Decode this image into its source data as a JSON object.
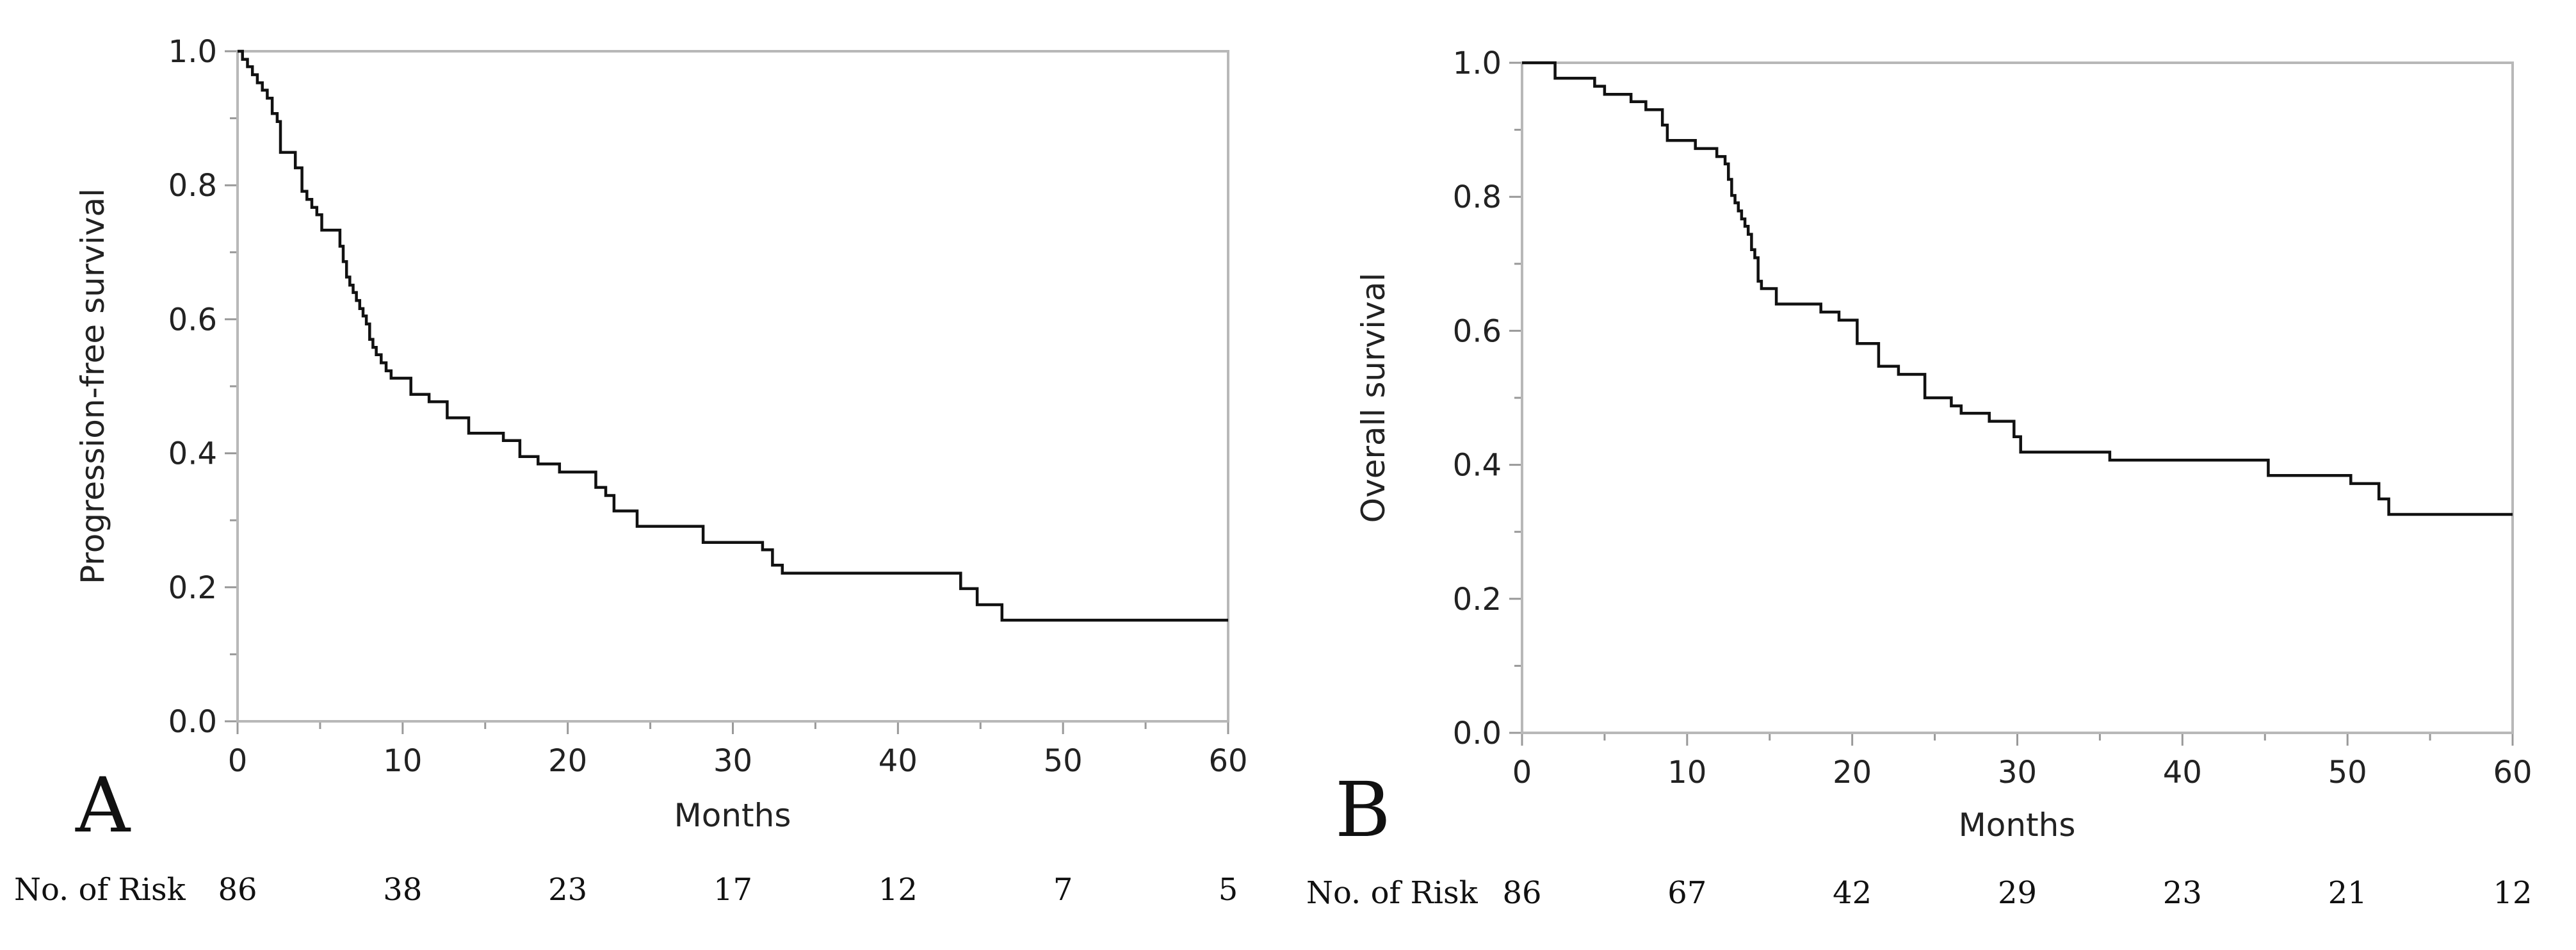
{
  "figure": {
    "risk_table_label": "No. of Risk"
  },
  "chart_data": [
    {
      "type": "line",
      "step": "post",
      "panel_label": "A",
      "title": "",
      "xlabel": "Months",
      "ylabel": "Progression-free survival",
      "xlim": [
        0,
        60
      ],
      "ylim": [
        0,
        1
      ],
      "x_ticks": [
        "0",
        "10",
        "20",
        "30",
        "40",
        "50",
        "60"
      ],
      "y_ticks": [
        "0.0",
        "0.2",
        "0.4",
        "0.6",
        "0.8",
        "1.0"
      ],
      "series": [
        {
          "name": "Progression-free survival",
          "x": [
            0,
            0.3,
            0.6,
            0.9,
            1.2,
            1.5,
            1.8,
            2.1,
            2.4,
            2.6,
            3.5,
            3.9,
            4.2,
            4.5,
            4.8,
            5.1,
            6.2,
            6.4,
            6.6,
            6.8,
            7.0,
            7.2,
            7.4,
            7.6,
            7.8,
            8.0,
            8.2,
            8.4,
            8.7,
            9.0,
            9.3,
            10.5,
            11.6,
            12.7,
            14.0,
            16.1,
            17.1,
            18.2,
            19.5,
            21.7,
            22.3,
            22.8,
            24.2,
            28.2,
            31.8,
            32.4,
            33.0,
            43.8,
            44.8,
            46.3,
            60.0
          ],
          "y": [
            1.0,
            0.988,
            0.977,
            0.965,
            0.953,
            0.942,
            0.93,
            0.907,
            0.895,
            0.849,
            0.826,
            0.791,
            0.779,
            0.767,
            0.756,
            0.733,
            0.709,
            0.686,
            0.663,
            0.651,
            0.64,
            0.628,
            0.616,
            0.605,
            0.593,
            0.57,
            0.558,
            0.547,
            0.535,
            0.523,
            0.512,
            0.488,
            0.477,
            0.453,
            0.43,
            0.419,
            0.395,
            0.384,
            0.372,
            0.349,
            0.337,
            0.314,
            0.291,
            0.267,
            0.256,
            0.233,
            0.221,
            0.198,
            0.174,
            0.151,
            0.151
          ]
        }
      ],
      "number_at_risk": [
        {
          "time": 0,
          "value": "86"
        },
        {
          "time": 10,
          "value": "38"
        },
        {
          "time": 20,
          "value": "23"
        },
        {
          "time": 30,
          "value": "17"
        },
        {
          "time": 40,
          "value": "12"
        },
        {
          "time": 50,
          "value": "7"
        },
        {
          "time": 60,
          "value": "5"
        }
      ]
    },
    {
      "type": "line",
      "step": "post",
      "panel_label": "B",
      "title": "",
      "xlabel": "Months",
      "ylabel": "Overall survival",
      "xlim": [
        0,
        60
      ],
      "ylim": [
        0,
        1
      ],
      "x_ticks": [
        "0",
        "10",
        "20",
        "30",
        "40",
        "50",
        "60"
      ],
      "y_ticks": [
        "0.0",
        "0.2",
        "0.4",
        "0.6",
        "0.8",
        "1.0"
      ],
      "series": [
        {
          "name": "Overall survival",
          "x": [
            0,
            2.0,
            4.4,
            5.0,
            6.6,
            7.5,
            8.5,
            8.8,
            10.5,
            11.8,
            12.3,
            12.5,
            12.7,
            12.9,
            13.1,
            13.3,
            13.5,
            13.7,
            13.9,
            14.1,
            14.3,
            14.5,
            15.4,
            18.1,
            19.2,
            20.3,
            21.6,
            22.8,
            24.4,
            26.0,
            26.6,
            28.3,
            29.8,
            30.2,
            35.6,
            45.2,
            50.2,
            51.9,
            52.5,
            60.0
          ],
          "y": [
            1.0,
            0.977,
            0.965,
            0.953,
            0.942,
            0.93,
            0.907,
            0.884,
            0.872,
            0.86,
            0.849,
            0.826,
            0.802,
            0.791,
            0.779,
            0.767,
            0.756,
            0.744,
            0.721,
            0.709,
            0.674,
            0.663,
            0.64,
            0.628,
            0.616,
            0.581,
            0.547,
            0.535,
            0.5,
            0.488,
            0.477,
            0.465,
            0.442,
            0.419,
            0.407,
            0.384,
            0.372,
            0.349,
            0.326,
            0.326
          ]
        }
      ],
      "number_at_risk": [
        {
          "time": 0,
          "value": "86"
        },
        {
          "time": 10,
          "value": "67"
        },
        {
          "time": 20,
          "value": "42"
        },
        {
          "time": 30,
          "value": "29"
        },
        {
          "time": 40,
          "value": "23"
        },
        {
          "time": 50,
          "value": "21"
        },
        {
          "time": 60,
          "value": "12"
        }
      ]
    }
  ]
}
